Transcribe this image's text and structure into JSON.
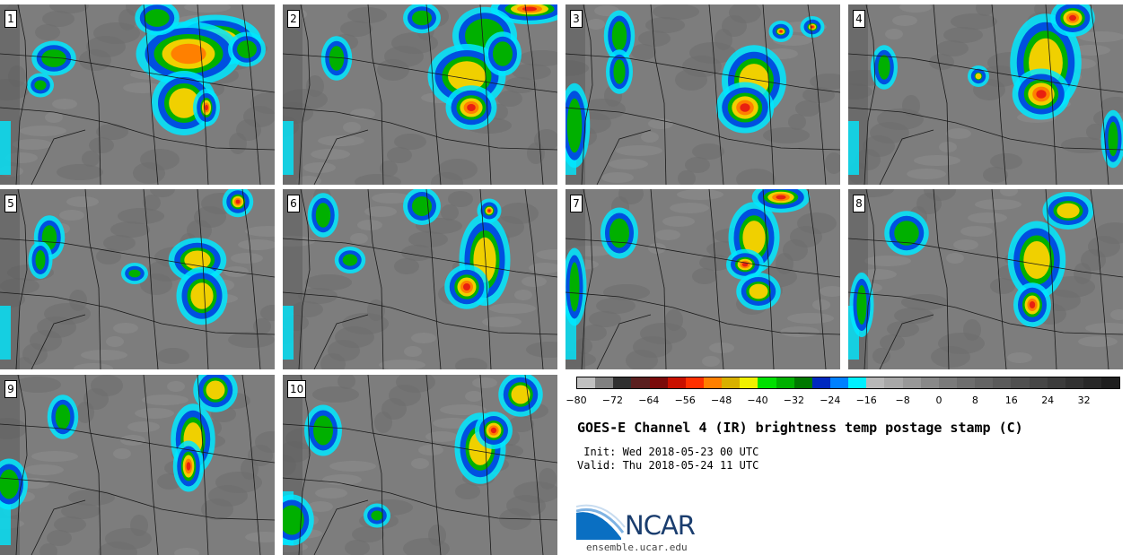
{
  "panels": [
    {
      "label": "1",
      "cells": [
        [
          240,
          45,
          60,
          30,
          "red"
        ],
        [
          210,
          60,
          70,
          40,
          "orange"
        ],
        [
          175,
          20,
          25,
          18,
          "green"
        ],
        [
          205,
          115,
          40,
          40,
          "yellow"
        ],
        [
          60,
          65,
          25,
          18,
          "green"
        ],
        [
          275,
          55,
          20,
          18,
          "green"
        ],
        [
          45,
          95,
          12,
          10,
          "blue"
        ],
        [
          230,
          120,
          12,
          20,
          "red"
        ]
      ]
    },
    {
      "label": "2",
      "cells": [
        [
          590,
          10,
          50,
          15,
          "red"
        ],
        [
          540,
          40,
          40,
          35,
          "green"
        ],
        [
          520,
          85,
          50,
          40,
          "yellow"
        ],
        [
          525,
          120,
          30,
          25,
          "red"
        ],
        [
          375,
          65,
          15,
          25,
          "blue"
        ],
        [
          560,
          60,
          20,
          25,
          "green"
        ],
        [
          470,
          20,
          20,
          15,
          "green"
        ]
      ]
    },
    {
      "label": "3",
      "cells": [
        [
          840,
          90,
          40,
          45,
          "yellow"
        ],
        [
          830,
          120,
          35,
          30,
          "red"
        ],
        [
          690,
          40,
          15,
          30,
          "blue"
        ],
        [
          690,
          80,
          12,
          25,
          "green"
        ],
        [
          870,
          35,
          10,
          8,
          "red"
        ],
        [
          905,
          30,
          10,
          8,
          "red"
        ],
        [
          640,
          140,
          15,
          55,
          "blue"
        ]
      ]
    },
    {
      "label": "4",
      "cells": [
        [
          1165,
          70,
          45,
          65,
          "yellow"
        ],
        [
          1160,
          105,
          35,
          30,
          "red"
        ],
        [
          1195,
          20,
          25,
          20,
          "red"
        ],
        [
          985,
          75,
          12,
          25,
          "blue"
        ],
        [
          1090,
          85,
          8,
          8,
          "yellow"
        ],
        [
          1240,
          155,
          10,
          35,
          "blue"
        ]
      ]
    },
    {
      "label": "5",
      "cells": [
        [
          220,
          290,
          35,
          25,
          "yellow"
        ],
        [
          225,
          330,
          30,
          35,
          "yellow"
        ],
        [
          265,
          225,
          15,
          15,
          "red"
        ],
        [
          55,
          265,
          15,
          25,
          "green"
        ],
        [
          45,
          290,
          10,
          20,
          "blue"
        ],
        [
          150,
          305,
          12,
          8,
          "green"
        ]
      ]
    },
    {
      "label": "6",
      "cells": [
        [
          540,
          290,
          30,
          60,
          "yellow"
        ],
        [
          545,
          235,
          10,
          10,
          "red"
        ],
        [
          520,
          320,
          25,
          25,
          "red"
        ],
        [
          360,
          240,
          15,
          25,
          "blue"
        ],
        [
          470,
          230,
          20,
          20,
          "green"
        ],
        [
          390,
          290,
          15,
          12,
          "green"
        ]
      ]
    },
    {
      "label": "7",
      "cells": [
        [
          840,
          265,
          30,
          45,
          "yellow"
        ],
        [
          830,
          295,
          20,
          15,
          "red"
        ],
        [
          870,
          220,
          35,
          15,
          "red"
        ],
        [
          690,
          260,
          20,
          30,
          "green"
        ],
        [
          845,
          325,
          25,
          20,
          "yellow"
        ],
        [
          640,
          320,
          10,
          50,
          "blue"
        ]
      ]
    },
    {
      "label": "8",
      "cells": [
        [
          1155,
          290,
          35,
          50,
          "yellow"
        ],
        [
          1150,
          340,
          20,
          25,
          "red"
        ],
        [
          1190,
          235,
          30,
          20,
          "yellow"
        ],
        [
          1010,
          260,
          25,
          25,
          "blue"
        ],
        [
          960,
          340,
          10,
          40,
          "blue"
        ]
      ]
    },
    {
      "label": "9",
      "cells": [
        [
          240,
          435,
          25,
          25,
          "yellow"
        ],
        [
          215,
          490,
          25,
          45,
          "yellow"
        ],
        [
          210,
          520,
          15,
          30,
          "red"
        ],
        [
          70,
          465,
          15,
          25,
          "blue"
        ],
        [
          10,
          540,
          20,
          30,
          "blue"
        ]
      ]
    },
    {
      "label": "10",
      "cells": [
        [
          580,
          440,
          25,
          25,
          "yellow"
        ],
        [
          535,
          500,
          30,
          45,
          "yellow"
        ],
        [
          550,
          480,
          20,
          20,
          "red"
        ],
        [
          360,
          480,
          20,
          30,
          "blue"
        ],
        [
          325,
          580,
          25,
          30,
          "green"
        ],
        [
          420,
          575,
          12,
          10,
          "blue"
        ]
      ]
    }
  ],
  "colorbar": {
    "colors": [
      "#c0c0c0",
      "#808080",
      "#303030",
      "#5a1f1f",
      "#7a0a0a",
      "#c81000",
      "#ff3000",
      "#ff7f00",
      "#d8b000",
      "#f0f000",
      "#00e000",
      "#00b000",
      "#007800",
      "#0028c0",
      "#0080ff",
      "#00f0ff",
      "#b8b8b8",
      "#a8a8a8",
      "#989898",
      "#888888",
      "#7a7a7a",
      "#6e6e6e",
      "#646464",
      "#5a5a5a",
      "#505050",
      "#464646",
      "#3c3c3c",
      "#323232",
      "#282828",
      "#1e1e1e"
    ],
    "ticks": [
      "−80",
      "−72",
      "−64",
      "−56",
      "−48",
      "−40",
      "−32",
      "−24",
      "−16",
      "−8",
      "0",
      "8",
      "16",
      "24",
      "32"
    ]
  },
  "title": "GOES-E Channel 4 (IR) brightness temp postage stamp (C)",
  "init_line": " Init: Wed 2018-05-23 00 UTC",
  "valid_line": "Valid: Thu 2018-05-24 11 UTC",
  "logo_text": "NCAR",
  "site": "ensemble.ucar.edu",
  "palette": {
    "red": "#e82010",
    "orange": "#ff8000",
    "yellow": "#f0d000",
    "green": "#00b000",
    "blue": "#0050e0",
    "cyan": "#00e8ff"
  }
}
